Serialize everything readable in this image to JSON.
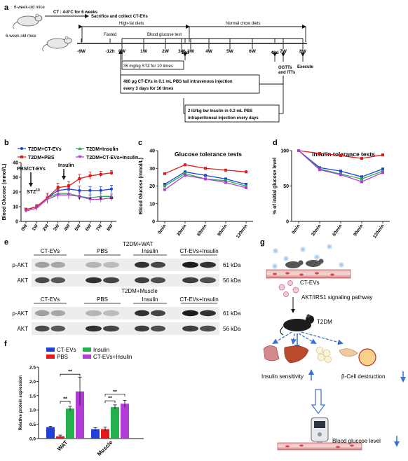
{
  "panels": {
    "a": "a",
    "b": "b",
    "c": "c",
    "d": "d",
    "e": "e",
    "f": "f",
    "g": "g"
  },
  "panel_a": {
    "mice1": "6-week-old mice",
    "ct": "CT : 4-8°C for 6 weeks",
    "sacrifice": "Sacrifice and collect CT-EVs",
    "mice2": "6-week-old mice",
    "hfd": "High-fat diets",
    "ncd": "Normal chow diets",
    "fasted": "Fasted",
    "bgt": "Blood glucose test",
    "timeline": [
      "-6W",
      "-12h",
      "0W",
      "1W",
      "2W",
      "3W",
      "18d",
      "3W",
      "4W",
      "5W",
      "6W",
      "48d",
      "7W",
      "8W"
    ],
    "stz": "35 mg/kg STZ for 10 times",
    "ogtt": "OGTTs",
    "itt": "and ITTs",
    "execute": "Execute",
    "ev_box1": "400 μg CT-EVs in 0.1 mL PBS tail intravenous injection",
    "ev_box2": "every 3 days for 16 times",
    "ins_box1": "2 IU/kg bw Insulin in 0.2 mL PBS",
    "ins_box2": "intraperitoneal injection every days"
  },
  "panel_b": {
    "legend": [
      "T2DM+CT-EVs",
      "T2DM+Insulin",
      "T2DM+PBS",
      "T2DM+CT-EVs+Insulin"
    ],
    "pbs_label": "PBS/CT-EVs",
    "ins_label": "Insulin",
    "stz_label": "STZ",
    "stz_sup": "10",
    "sig": [
      "*",
      "*",
      "*",
      "**"
    ]
  },
  "panel_c": {
    "dummy": ""
  },
  "panel_e": {
    "wat_title": "T2DM+WAT",
    "muscle_title": "T2DM+Muscle",
    "groups": [
      "CT-EVs",
      "PBS",
      "Insulin",
      "CT-EVs+Insulin"
    ],
    "rows": [
      "p-AKT",
      "AKT"
    ],
    "kda": [
      "61 kDa",
      "56 kDa"
    ]
  },
  "panel_g": {
    "ct_evs": "CT-EVs",
    "pathway": "AKT/IRS1 signaling pathway",
    "t2dm": "T2DM",
    "insulin_sens": "Insulin sensitivity",
    "beta": "β-Cell destruction",
    "bgl": "Blood glucose level"
  },
  "chart_data": [
    {
      "panel": "b",
      "type": "line",
      "title": "",
      "xlabel": "",
      "ylabel": "Blood Glucose (mmol/L)",
      "ylim": [
        0,
        40
      ],
      "yticks": [
        "0",
        "10",
        "20",
        "30",
        "40"
      ],
      "categories": [
        "0W",
        "1W",
        "2W",
        "3W",
        "4W",
        "5W",
        "6W",
        "7W",
        "8W"
      ],
      "series": [
        {
          "name": "T2DM+CT-EVs",
          "color": "#1f3fd6",
          "values": [
            8,
            10,
            16,
            21,
            22,
            21,
            21,
            21,
            22
          ],
          "err": [
            1,
            1.5,
            3,
            3,
            3,
            3,
            2.5,
            2.5,
            2.5
          ]
        },
        {
          "name": "T2DM+Insulin",
          "color": "#22b14c",
          "values": [
            8,
            10,
            16,
            19,
            19,
            17,
            16,
            17,
            17
          ],
          "err": [
            1,
            1.5,
            3,
            3,
            3,
            2.5,
            2.5,
            2,
            2
          ]
        },
        {
          "name": "T2DM+PBS",
          "color": "#e11b1b",
          "values": [
            8,
            10,
            16,
            23,
            24,
            29,
            31,
            32,
            33
          ],
          "err": [
            1,
            1.5,
            3,
            3,
            3,
            3,
            2.5,
            2,
            1.5
          ]
        },
        {
          "name": "T2DM+CT-EVs+Insulin",
          "color": "#b23cd6",
          "values": [
            7,
            9,
            15,
            18,
            18,
            17,
            15,
            15,
            16
          ],
          "err": [
            1,
            1.5,
            3,
            3,
            3,
            2.5,
            2.5,
            2,
            2
          ]
        }
      ],
      "legend": "top-left",
      "grid": false
    },
    {
      "panel": "c",
      "type": "line",
      "title": "Glucose tolerance tests",
      "xlabel": "",
      "ylabel": "Blood Glucose (mmol/L)",
      "ylim": [
        0,
        40
      ],
      "yticks": [
        "0",
        "10",
        "20",
        "30",
        "40"
      ],
      "categories": [
        "0min",
        "30min",
        "60min",
        "90min",
        "120min"
      ],
      "series": [
        {
          "color": "#e11b1b",
          "values": [
            27,
            32,
            30,
            29,
            28
          ]
        },
        {
          "color": "#1f3fd6",
          "values": [
            21,
            28,
            26,
            24,
            21
          ]
        },
        {
          "color": "#22b14c",
          "values": [
            20,
            27,
            24,
            23,
            20
          ]
        },
        {
          "color": "#b23cd6",
          "values": [
            18,
            26,
            24,
            22,
            19
          ]
        }
      ],
      "grid": false
    },
    {
      "panel": "d",
      "type": "line",
      "title": "Insulin tolerance tests",
      "xlabel": "",
      "ylabel": "% of initial glucose level",
      "ylim": [
        0,
        100
      ],
      "yticks": [
        "0",
        "50",
        "100"
      ],
      "categories": [
        "0min",
        "30min",
        "60min",
        "90min",
        "120min"
      ],
      "series": [
        {
          "color": "#e11b1b",
          "values": [
            100,
            96,
            93,
            89,
            94
          ]
        },
        {
          "color": "#1f3fd6",
          "values": [
            100,
            76,
            71,
            63,
            74
          ]
        },
        {
          "color": "#22b14c",
          "values": [
            100,
            74,
            67,
            60,
            71
          ]
        },
        {
          "color": "#b23cd6",
          "values": [
            100,
            73,
            66,
            56,
            69
          ]
        }
      ],
      "grid": false
    },
    {
      "panel": "f",
      "type": "bar",
      "title": "",
      "xlabel": "",
      "ylabel": "Relative protein expression",
      "ylim": [
        0,
        2.5
      ],
      "yticks": [
        "0.0",
        "0.5",
        "1.0",
        "1.5",
        "2.0",
        "2.5"
      ],
      "categories": [
        "WAT",
        "Muscle"
      ],
      "series": [
        {
          "name": "CT-EVs",
          "color": "#1f3fd6",
          "values": [
            0.4,
            0.33
          ],
          "err": [
            0.03,
            0.05
          ]
        },
        {
          "name": "PBS",
          "color": "#e11b1b",
          "values": [
            0.08,
            0.33
          ],
          "err": [
            0.04,
            0.07
          ]
        },
        {
          "name": "Insulin",
          "color": "#22b14c",
          "values": [
            1.05,
            1.1
          ],
          "err": [
            0.08,
            0.08
          ]
        },
        {
          "name": "CT-EVs+Insulin",
          "color": "#b23cd6",
          "values": [
            1.65,
            1.22
          ],
          "err": [
            0.5,
            0.12
          ]
        }
      ],
      "sig": [
        "**",
        "**",
        "**",
        "**"
      ],
      "legend": "top"
    }
  ]
}
